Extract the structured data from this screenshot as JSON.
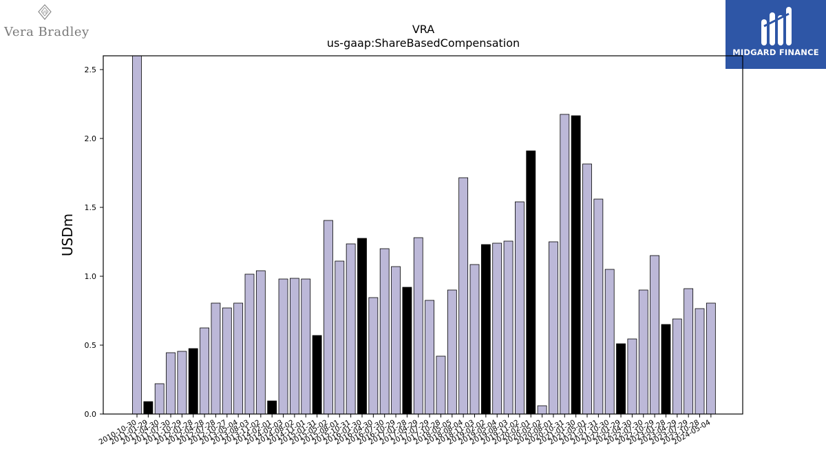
{
  "branding": {
    "left_logo_text": "Vera Bradley",
    "left_logo_mark": "VB",
    "right_logo_text": "MIDGARD FINANCE",
    "right_logo_bg": "#2e56a6"
  },
  "chart_data": {
    "type": "bar",
    "title": "VRA",
    "subtitle": "us-gaap:ShareBasedCompensation",
    "xlabel": "",
    "ylabel": "USDm",
    "ylim": [
      0,
      2.6
    ],
    "yticks": [
      "0.0",
      "0.5",
      "1.0",
      "1.5",
      "2.0",
      "2.5"
    ],
    "grid": false,
    "colors": {
      "normal": "#bcb8d8",
      "highlight": "#000000",
      "edge": "#000000"
    },
    "categories": [
      "2010-10-30",
      "2011-01-29",
      "2011-04-30",
      "2011-07-30",
      "2011-10-29",
      "2012-01-28",
      "2012-04-28",
      "2012-07-28",
      "2012-10-27",
      "2013-05-04",
      "2013-08-03",
      "2013-11-02",
      "2014-02-01",
      "2014-05-03",
      "2014-08-02",
      "2014-11-01",
      "2015-01-31",
      "2015-05-02",
      "2015-08-01",
      "2015-10-31",
      "2016-01-30",
      "2016-04-30",
      "2016-07-30",
      "2016-10-29",
      "2017-01-28",
      "2017-04-29",
      "2017-07-29",
      "2017-10-28",
      "2018-05-05",
      "2018-08-04",
      "2018-11-03",
      "2019-02-02",
      "2019-05-04",
      "2019-08-03",
      "2019-11-02",
      "2020-02-01",
      "2020-05-02",
      "2020-08-01",
      "2020-10-31",
      "2021-01-30",
      "2021-05-01",
      "2021-07-31",
      "2021-10-30",
      "2022-01-29",
      "2022-04-30",
      "2022-07-30",
      "2022-10-29",
      "2023-01-28",
      "2023-04-29",
      "2023-07-29",
      "2023-10-28",
      "2024-05-04"
    ],
    "values": [
      2.6,
      0.09,
      0.22,
      0.445,
      0.455,
      0.475,
      0.625,
      0.805,
      0.77,
      0.805,
      1.015,
      1.04,
      0.095,
      0.98,
      0.985,
      0.98,
      0.57,
      1.405,
      1.11,
      1.235,
      1.275,
      0.845,
      1.2,
      1.07,
      0.92,
      1.28,
      0.825,
      0.42,
      0.9,
      1.715,
      1.085,
      1.23,
      1.24,
      1.255,
      1.54,
      1.91,
      0.06,
      1.25,
      2.175,
      2.165,
      1.815,
      1.56,
      1.05,
      0.51,
      0.545,
      0.9,
      1.15,
      0.65,
      0.69,
      0.91,
      0.765,
      0.805
    ],
    "highlight": [
      false,
      true,
      false,
      false,
      false,
      true,
      false,
      false,
      false,
      false,
      false,
      false,
      true,
      false,
      false,
      false,
      true,
      false,
      false,
      false,
      true,
      false,
      false,
      false,
      true,
      false,
      false,
      false,
      false,
      false,
      false,
      true,
      false,
      false,
      false,
      true,
      false,
      false,
      false,
      true,
      false,
      false,
      false,
      true,
      false,
      false,
      false,
      true,
      false,
      false,
      false,
      false
    ]
  }
}
